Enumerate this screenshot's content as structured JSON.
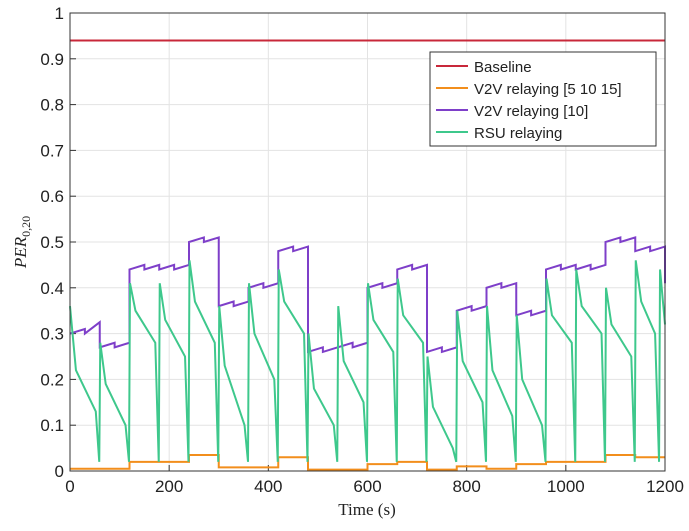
{
  "chart_data": {
    "type": "line",
    "xlabel": "Time (s)",
    "ylabel": {
      "main": "PER",
      "sub": "0,20"
    },
    "xlim": [
      0,
      1200
    ],
    "xticks": [
      0,
      200,
      400,
      600,
      800,
      1000,
      1200
    ],
    "ylim": [
      0,
      1
    ],
    "yticks": [
      0,
      0.1,
      0.2,
      0.3,
      0.4,
      0.5,
      0.6,
      0.7,
      0.8,
      0.9,
      1
    ],
    "grid": true,
    "legend": "upper right",
    "series": [
      {
        "name": "Baseline",
        "color": "#c8283a",
        "x": [
          0,
          1200
        ],
        "values": [
          0.94,
          0.94
        ]
      },
      {
        "name": "V2V relaying [5 10 15]",
        "color": "#f28e1c",
        "x": [
          0,
          60,
          60,
          120,
          120,
          180,
          180,
          240,
          240,
          300,
          300,
          360,
          360,
          420,
          420,
          480,
          480,
          540,
          540,
          600,
          600,
          660,
          660,
          720,
          720,
          780,
          780,
          840,
          840,
          900,
          900,
          960,
          960,
          1020,
          1020,
          1080,
          1080,
          1140,
          1140,
          1200
        ],
        "values": [
          0.005,
          0.005,
          0.005,
          0.005,
          0.02,
          0.02,
          0.02,
          0.02,
          0.035,
          0.035,
          0.008,
          0.008,
          0.008,
          0.008,
          0.03,
          0.03,
          0.003,
          0.003,
          0.003,
          0.003,
          0.015,
          0.015,
          0.02,
          0.02,
          0.003,
          0.003,
          0.01,
          0.01,
          0.005,
          0.005,
          0.015,
          0.015,
          0.02,
          0.02,
          0.02,
          0.02,
          0.035,
          0.035,
          0.03,
          0.03
        ]
      },
      {
        "name": "V2V relaying [10]",
        "color": "#7e3fc9",
        "x": [
          0,
          30,
          30,
          60,
          60,
          90,
          90,
          120,
          120,
          150,
          150,
          180,
          180,
          210,
          210,
          240,
          240,
          270,
          270,
          300,
          300,
          330,
          330,
          360,
          360,
          390,
          390,
          420,
          420,
          450,
          450,
          480,
          480,
          510,
          510,
          540,
          540,
          570,
          570,
          600,
          600,
          630,
          630,
          660,
          660,
          690,
          690,
          720,
          720,
          750,
          750,
          780,
          780,
          810,
          810,
          840,
          840,
          870,
          870,
          900,
          900,
          930,
          930,
          960,
          960,
          990,
          990,
          1020,
          1020,
          1050,
          1050,
          1080,
          1080,
          1110,
          1110,
          1140,
          1140,
          1170,
          1170,
          1200,
          1200
        ],
        "values": [
          0.3,
          0.31,
          0.3,
          0.325,
          0.27,
          0.28,
          0.27,
          0.28,
          0.44,
          0.45,
          0.44,
          0.45,
          0.44,
          0.45,
          0.44,
          0.45,
          0.5,
          0.51,
          0.5,
          0.51,
          0.36,
          0.37,
          0.36,
          0.37,
          0.4,
          0.41,
          0.4,
          0.41,
          0.48,
          0.49,
          0.48,
          0.49,
          0.26,
          0.27,
          0.26,
          0.27,
          0.27,
          0.28,
          0.27,
          0.28,
          0.4,
          0.41,
          0.4,
          0.41,
          0.44,
          0.45,
          0.44,
          0.45,
          0.26,
          0.27,
          0.26,
          0.27,
          0.35,
          0.36,
          0.35,
          0.36,
          0.4,
          0.41,
          0.4,
          0.41,
          0.34,
          0.35,
          0.34,
          0.35,
          0.44,
          0.45,
          0.44,
          0.45,
          0.44,
          0.45,
          0.44,
          0.45,
          0.5,
          0.51,
          0.5,
          0.51,
          0.48,
          0.49,
          0.48,
          0.49,
          0.41
        ]
      },
      {
        "name": "RSU relaying",
        "color": "#3ec88c",
        "x": [
          0,
          12,
          52,
          59,
          61,
          72,
          112,
          119,
          121,
          132,
          172,
          179,
          181,
          192,
          232,
          239,
          241,
          252,
          292,
          299,
          301,
          312,
          352,
          359,
          361,
          372,
          412,
          419,
          421,
          432,
          472,
          479,
          481,
          492,
          532,
          539,
          541,
          552,
          592,
          599,
          601,
          612,
          652,
          659,
          661,
          672,
          712,
          719,
          721,
          732,
          772,
          779,
          781,
          792,
          832,
          839,
          841,
          852,
          892,
          899,
          901,
          912,
          952,
          959,
          961,
          972,
          1012,
          1019,
          1021,
          1032,
          1072,
          1079,
          1081,
          1092,
          1132,
          1139,
          1141,
          1152,
          1180,
          1188,
          1190,
          1200
        ],
        "values": [
          0.36,
          0.22,
          0.13,
          0.02,
          0.28,
          0.19,
          0.1,
          0.02,
          0.41,
          0.35,
          0.28,
          0.02,
          0.41,
          0.33,
          0.25,
          0.02,
          0.46,
          0.37,
          0.28,
          0.02,
          0.36,
          0.23,
          0.1,
          0.02,
          0.41,
          0.3,
          0.2,
          0.02,
          0.44,
          0.37,
          0.3,
          0.02,
          0.3,
          0.18,
          0.1,
          0.02,
          0.36,
          0.24,
          0.15,
          0.02,
          0.41,
          0.33,
          0.26,
          0.02,
          0.42,
          0.34,
          0.28,
          0.02,
          0.25,
          0.14,
          0.05,
          0.02,
          0.35,
          0.24,
          0.15,
          0.02,
          0.36,
          0.22,
          0.12,
          0.02,
          0.34,
          0.2,
          0.1,
          0.02,
          0.42,
          0.34,
          0.28,
          0.02,
          0.44,
          0.36,
          0.3,
          0.02,
          0.4,
          0.32,
          0.25,
          0.02,
          0.46,
          0.37,
          0.3,
          0.02,
          0.44,
          0.32
        ]
      }
    ]
  }
}
